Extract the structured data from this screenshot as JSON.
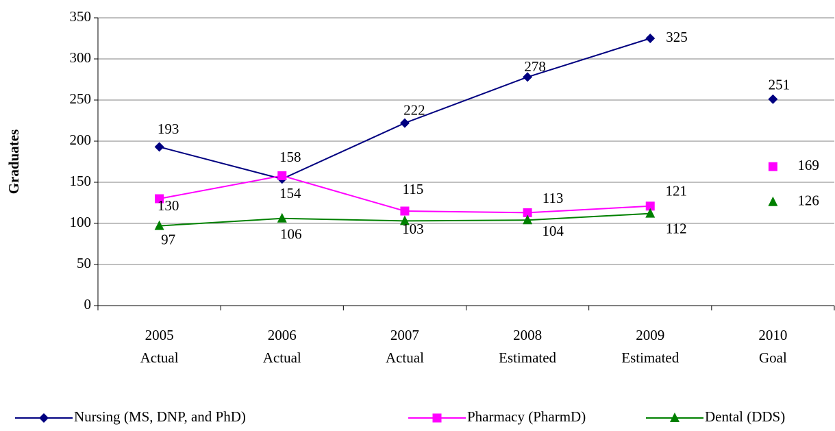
{
  "chart_data": {
    "type": "line",
    "y_label": "Graduates",
    "categories": [
      "2005",
      "2006",
      "2007",
      "2008",
      "2009",
      "2010"
    ],
    "category_notes": [
      "Actual",
      "Actual",
      "Actual",
      "Estimated",
      "Estimated",
      "Goal"
    ],
    "connect_last_point": false,
    "series": [
      {
        "name": "Nursing (MS, DNP, and PhD)",
        "color": "#000080",
        "marker": "diamond",
        "values": [
          193,
          154,
          222,
          278,
          325,
          251
        ]
      },
      {
        "name": "Pharmacy (PharmD)",
        "color": "#ff00ff",
        "marker": "square",
        "values": [
          130,
          158,
          115,
          113,
          121,
          169
        ]
      },
      {
        "name": "Dental (DDS)",
        "color": "#008000",
        "marker": "triangle",
        "values": [
          97,
          106,
          103,
          104,
          112,
          126
        ]
      }
    ],
    "ylim": [
      0,
      350
    ],
    "yticks": [
      0,
      50,
      100,
      150,
      200,
      250,
      300,
      350
    ],
    "grid": true
  }
}
